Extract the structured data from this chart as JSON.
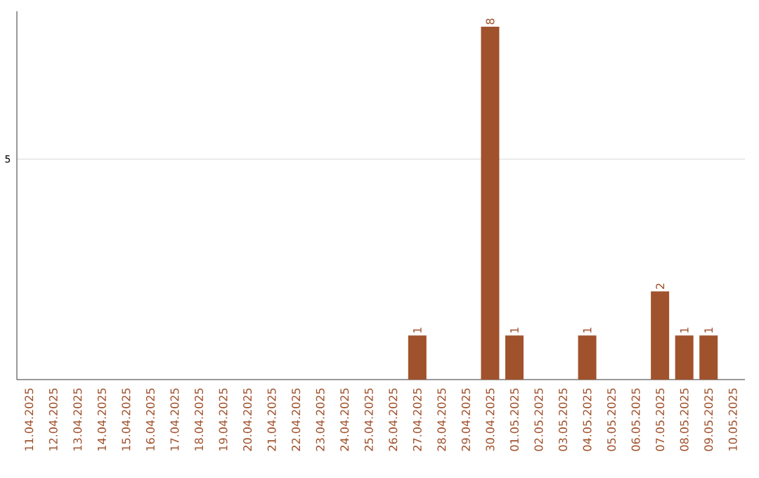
{
  "chart_data": {
    "type": "bar",
    "categories": [
      "11.04.2025",
      "12.04.2025",
      "13.04.2025",
      "14.04.2025",
      "15.04.2025",
      "16.04.2025",
      "17.04.2025",
      "18.04.2025",
      "19.04.2025",
      "20.04.2025",
      "21.04.2025",
      "22.04.2025",
      "23.04.2025",
      "24.04.2025",
      "25.04.2025",
      "26.04.2025",
      "27.04.2025",
      "28.04.2025",
      "29.04.2025",
      "30.04.2025",
      "01.05.2025",
      "02.05.2025",
      "03.05.2025",
      "04.05.2025",
      "05.05.2025",
      "06.05.2025",
      "07.05.2025",
      "08.05.2025",
      "09.05.2025",
      "10.05.2025"
    ],
    "values": [
      null,
      null,
      null,
      null,
      null,
      null,
      null,
      null,
      null,
      null,
      null,
      null,
      null,
      null,
      null,
      null,
      1,
      null,
      null,
      8,
      1,
      null,
      null,
      1,
      null,
      null,
      2,
      1,
      1,
      null
    ],
    "data_labels": true,
    "color": "#a0522d",
    "ylim": [
      0,
      8.35
    ],
    "yticks": [
      5
    ],
    "grid": "y"
  }
}
